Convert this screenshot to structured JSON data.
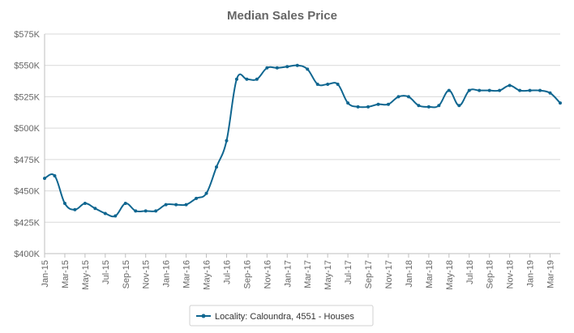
{
  "chart_data": {
    "type": "line",
    "title": "Median Sales Price",
    "xlabel": "",
    "ylabel": "",
    "ylim": [
      400000,
      575000
    ],
    "y_ticks": [
      400000,
      425000,
      450000,
      475000,
      500000,
      525000,
      550000,
      575000
    ],
    "y_tick_labels": [
      "$400K",
      "$425K",
      "$450K",
      "$475K",
      "$500K",
      "$525K",
      "$550K",
      "$575K"
    ],
    "x_tick_labels": [
      "Jan-15",
      "Mar-15",
      "May-15",
      "Jul-15",
      "Sep-15",
      "Nov-15",
      "Jan-16",
      "Mar-16",
      "May-16",
      "Jul-16",
      "Sep-16",
      "Nov-16",
      "Jan-17",
      "Mar-17",
      "May-17",
      "Jul-17",
      "Sep-17",
      "Nov-17",
      "Jan-18",
      "Mar-18",
      "May-18",
      "Jul-18",
      "Sep-18",
      "Nov-18",
      "Jan-19",
      "Mar-19"
    ],
    "categories": [
      "Jan-15",
      "Feb-15",
      "Mar-15",
      "Apr-15",
      "May-15",
      "Jun-15",
      "Jul-15",
      "Aug-15",
      "Sep-15",
      "Oct-15",
      "Nov-15",
      "Dec-15",
      "Jan-16",
      "Feb-16",
      "Mar-16",
      "Apr-16",
      "May-16",
      "Jun-16",
      "Jul-16",
      "Aug-16",
      "Sep-16",
      "Oct-16",
      "Nov-16",
      "Dec-16",
      "Jan-17",
      "Feb-17",
      "Mar-17",
      "Apr-17",
      "May-17",
      "Jun-17",
      "Jul-17",
      "Aug-17",
      "Sep-17",
      "Oct-17",
      "Nov-17",
      "Dec-17",
      "Jan-18",
      "Feb-18",
      "Mar-18",
      "Apr-18",
      "May-18",
      "Jun-18",
      "Jul-18",
      "Aug-18",
      "Sep-18",
      "Oct-18",
      "Nov-18",
      "Dec-18",
      "Jan-19",
      "Feb-19",
      "Mar-19",
      "Apr-19"
    ],
    "grid": true,
    "legend_position": "bottom-center",
    "series": [
      {
        "name": "Locality: Caloundra, 4551 - Houses",
        "color": "#0f6690",
        "values": [
          460000,
          462000,
          440000,
          435000,
          440000,
          436000,
          432000,
          430000,
          440000,
          434000,
          434000,
          434000,
          439000,
          439000,
          439000,
          444000,
          448000,
          469000,
          490000,
          539000,
          539000,
          539000,
          548000,
          548000,
          549000,
          550000,
          547000,
          535000,
          535000,
          535000,
          520000,
          517000,
          517000,
          519000,
          519000,
          525000,
          525000,
          518000,
          517000,
          518000,
          530000,
          518000,
          530000,
          530000,
          530000,
          530000,
          534000,
          530000,
          530000,
          530000,
          528000,
          520000
        ]
      }
    ]
  }
}
